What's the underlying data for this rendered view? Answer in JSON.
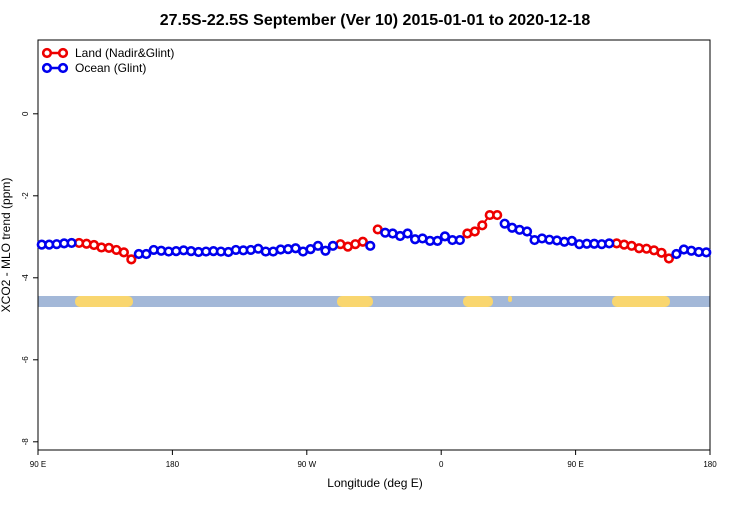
{
  "chart_data": {
    "type": "line",
    "title": "27.5S-22.5S September (Ver 10)   2015-01-01 to 2020-12-18",
    "x_label": "Longitude (deg E)",
    "y_label": "XCO2 - MLO trend (ppm)",
    "x": [
      92.5,
      97.5,
      102.5,
      107.5,
      112.5,
      117.5,
      122.5,
      127.5,
      132.5,
      137.5,
      142.5,
      147.5,
      152.5,
      157.5,
      162.5,
      167.5,
      172.5,
      177.5,
      182.5,
      187.5,
      192.5,
      197.5,
      202.5,
      207.5,
      212.5,
      217.5,
      222.5,
      227.5,
      232.5,
      237.5,
      242.5,
      247.5,
      252.5,
      257.5,
      262.5,
      267.5,
      272.5,
      277.5,
      282.5,
      287.5,
      292.5,
      297.5,
      302.5,
      307.5,
      312.5,
      317.5,
      322.5,
      327.5,
      332.5,
      337.5,
      342.5,
      347.5,
      352.5,
      357.5,
      362.5,
      367.5,
      372.5,
      377.5,
      382.5,
      387.5,
      392.5,
      397.5,
      402.5,
      407.5,
      412.5,
      417.5,
      422.5,
      427.5,
      432.5,
      437.5,
      442.5,
      447.5,
      452.5,
      457.5,
      462.5,
      467.5,
      472.5,
      477.5,
      482.5,
      487.5,
      492.5,
      497.5,
      502.5,
      507.5,
      512.5,
      517.5,
      522.5,
      527.5,
      532.5,
      537.5
    ],
    "series": [
      {
        "name": "Land (Nadir&Glint)",
        "color": "#ee0000",
        "values": [
          null,
          null,
          null,
          null,
          null,
          -3.15,
          -3.17,
          -3.2,
          -3.26,
          -3.27,
          -3.32,
          -3.38,
          -3.55,
          null,
          null,
          null,
          null,
          null,
          null,
          null,
          null,
          null,
          null,
          null,
          null,
          null,
          null,
          null,
          null,
          null,
          null,
          null,
          null,
          null,
          null,
          null,
          null,
          null,
          null,
          null,
          -3.18,
          -3.24,
          -3.18,
          -3.12,
          null,
          -2.82,
          null,
          null,
          null,
          null,
          null,
          null,
          null,
          null,
          null,
          null,
          null,
          -2.92,
          -2.87,
          -2.72,
          -2.47,
          -2.47,
          null,
          null,
          null,
          null,
          null,
          null,
          null,
          null,
          null,
          null,
          null,
          null,
          null,
          null,
          null,
          -3.16,
          -3.19,
          -3.22,
          -3.28,
          -3.29,
          -3.33,
          -3.39,
          -3.53,
          null,
          null,
          null,
          null,
          null
        ]
      },
      {
        "name": "Ocean (Glint)",
        "color": "#0000ee",
        "values": [
          -3.19,
          -3.19,
          -3.18,
          -3.16,
          -3.15,
          null,
          null,
          null,
          null,
          null,
          null,
          null,
          null,
          -3.42,
          -3.42,
          -3.32,
          -3.34,
          -3.36,
          -3.35,
          -3.33,
          -3.35,
          -3.37,
          -3.36,
          -3.35,
          -3.36,
          -3.37,
          -3.32,
          -3.33,
          -3.32,
          -3.29,
          -3.36,
          -3.36,
          -3.31,
          -3.3,
          -3.28,
          -3.36,
          -3.3,
          -3.22,
          -3.34,
          -3.22,
          null,
          null,
          null,
          null,
          -3.22,
          null,
          -2.9,
          -2.92,
          -2.98,
          -2.92,
          -3.06,
          -3.04,
          -3.1,
          -3.1,
          -2.99,
          -3.08,
          -3.08,
          null,
          null,
          null,
          null,
          null,
          -2.68,
          -2.78,
          -2.83,
          -2.87,
          -3.08,
          -3.04,
          -3.07,
          -3.09,
          -3.12,
          -3.1,
          -3.18,
          -3.17,
          -3.17,
          -3.18,
          -3.16,
          null,
          null,
          null,
          null,
          null,
          null,
          null,
          null,
          -3.42,
          -3.31,
          -3.34,
          -3.37,
          -3.38
        ]
      }
    ],
    "xlim": [
      90,
      540
    ],
    "xticks": [
      {
        "value": 90,
        "label": "90 E"
      },
      180,
      {
        "value": 270,
        "label": "90 W"
      },
      {
        "value": 360,
        "label": "0"
      },
      {
        "value": 450,
        "label": "90 E"
      },
      {
        "value": 540,
        "label": "180"
      }
    ],
    "ylim": [
      -8.2,
      1.8
    ],
    "yticks": [
      0,
      -2,
      -4,
      -6,
      -8
    ],
    "legend": "top-left"
  }
}
